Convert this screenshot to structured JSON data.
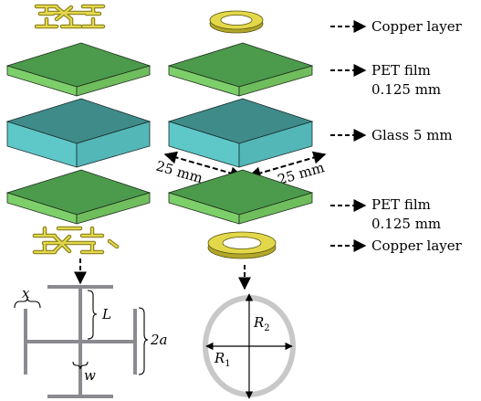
{
  "labels": {
    "copper_top": "Copper layer",
    "pet_top_line1": "PET film",
    "pet_top_line2": "0.125 mm",
    "glass": "Glass 5 mm",
    "pet_bottom_line1": "PET film",
    "pet_bottom_line2": "0.125 mm",
    "copper_bottom": "Copper layer",
    "dim_left": "25 mm",
    "dim_right": "25 mm"
  },
  "cross_symbols": {
    "x": "x",
    "L": "L",
    "two_a": "2a",
    "w": "w"
  },
  "ring_symbols": {
    "R2": "R",
    "R2_sub": "2",
    "R1": "R",
    "R1_sub": "1"
  },
  "colors": {
    "pet_top": "#4c9a4c",
    "pet_side": "#7dcf6a",
    "glass_top": "#3f8b8a",
    "glass_side": "#5ec8c9",
    "copper": "#e3d84a",
    "copper_dark": "#b2a72a",
    "cross_grey": "#8a8a90",
    "ring_grey": "#c8c8c8"
  }
}
